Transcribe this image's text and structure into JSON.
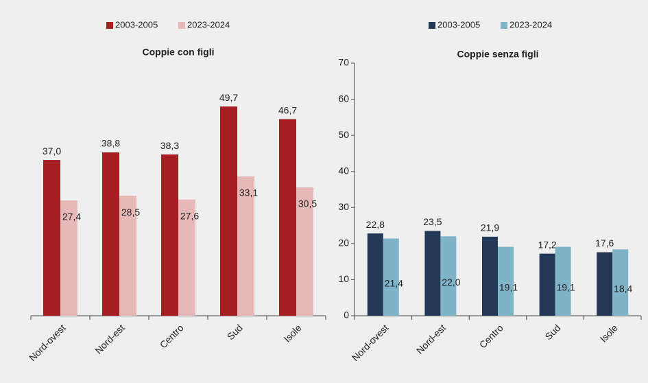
{
  "chart_data": [
    {
      "type": "bar",
      "title": "Coppie con figli",
      "categories": [
        "Nord-ovest",
        "Nord-est",
        "Centro",
        "Sud",
        "Isole"
      ],
      "series": [
        {
          "name": "2003-2005",
          "color": "#a51e22",
          "values": [
            37.0,
            38.8,
            38.3,
            49.7,
            46.7
          ],
          "value_labels": [
            "37,0",
            "38,8",
            "38,3",
            "49,7",
            "46,7"
          ]
        },
        {
          "name": "2023-2024",
          "color": "#e6b8b7",
          "values": [
            27.4,
            28.5,
            27.6,
            33.1,
            30.5
          ],
          "value_labels": [
            "27,4",
            "28,5",
            "27,6",
            "33,1",
            "30,5"
          ]
        }
      ],
      "ylim": [
        0,
        60
      ]
    },
    {
      "type": "bar",
      "title": "Coppie senza figli",
      "categories": [
        "Nord-ovest",
        "Nord-est",
        "Centro",
        "Sud",
        "Isole"
      ],
      "series": [
        {
          "name": "2003-2005",
          "color": "#243858",
          "values": [
            22.8,
            23.5,
            21.9,
            17.2,
            17.6
          ],
          "value_labels": [
            "22,8",
            "23,5",
            "21,9",
            "17,2",
            "17,6"
          ]
        },
        {
          "name": "2023-2024",
          "color": "#7fb3c8",
          "values": [
            21.4,
            22.0,
            19.1,
            19.1,
            18.4
          ],
          "value_labels": [
            "21,4",
            "22,0",
            "19,1",
            "19,1",
            "18,4"
          ]
        }
      ],
      "ylim": [
        0,
        70
      ],
      "yticks": [
        0,
        10,
        20,
        30,
        40,
        50,
        60,
        70
      ]
    }
  ]
}
